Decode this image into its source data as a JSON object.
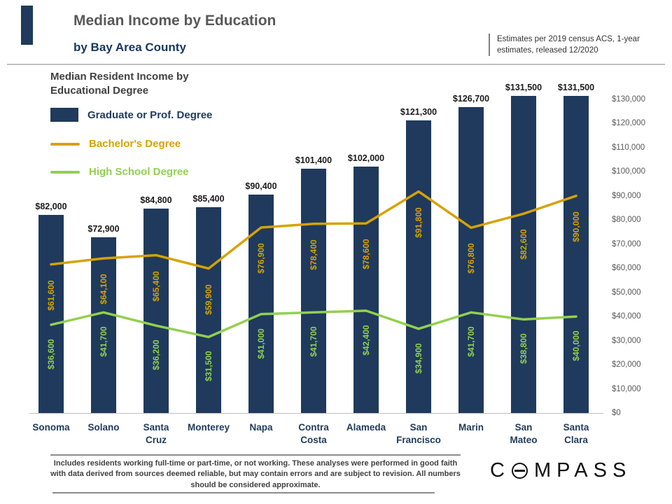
{
  "header": {
    "title": "Median Income by Education",
    "subtitle": "by Bay Area County",
    "note": "Estimates per 2019 census ACS, 1-year estimates, released 12/2020"
  },
  "chart_data": {
    "type": "bar",
    "title": "Median Resident Income by Educational Degree",
    "categories": [
      "Sonoma",
      "Solano",
      "Santa Cruz",
      "Monterey",
      "Napa",
      "Contra Costa",
      "Alameda",
      "San Francisco",
      "Marin",
      "San Mateo",
      "Santa Clara"
    ],
    "series": [
      {
        "name": "Graduate or Prof. Degree",
        "type": "bar",
        "color": "#1F3A5C",
        "values": [
          82000,
          72900,
          84800,
          85400,
          90400,
          101400,
          102000,
          121300,
          126700,
          131500,
          131500
        ],
        "labels": [
          "$82,000",
          "$72,900",
          "$84,800",
          "$85,400",
          "$90,400",
          "$101,400",
          "$102,000",
          "$121,300",
          "$126,700",
          "$131,500",
          "$131,500"
        ]
      },
      {
        "name": "Bachelor's Degree",
        "type": "line",
        "color": "#D7A204",
        "values": [
          61600,
          64100,
          65400,
          59900,
          76900,
          78400,
          78600,
          91800,
          76800,
          82600,
          90000
        ],
        "labels": [
          "$61,600",
          "$64,100",
          "$65,400",
          "$59,900",
          "$76,900",
          "$78,400",
          "$78,600",
          "$91,800",
          "$76,800",
          "$82,600",
          "$90,000"
        ]
      },
      {
        "name": "High School Degree",
        "type": "line",
        "color": "#92D050",
        "values": [
          36600,
          41700,
          36200,
          31500,
          41000,
          41700,
          42400,
          34900,
          41700,
          38800,
          40000
        ],
        "labels": [
          "$36,600",
          "$41,700",
          "$36,200",
          "$31,500",
          "$41,000",
          "$41,700",
          "$42,400",
          "$34,900",
          "$41,700",
          "$38,800",
          "$40,000"
        ]
      }
    ],
    "y_axis": {
      "side": "right",
      "min": 0,
      "max": 130000,
      "step": 10000,
      "ticks": [
        "$0",
        "$10,000",
        "$20,000",
        "$30,000",
        "$40,000",
        "$50,000",
        "$60,000",
        "$70,000",
        "$80,000",
        "$90,000",
        "$100,000",
        "$110,000",
        "$120,000",
        "$130,000"
      ]
    },
    "legend_position": "top-left",
    "grid": false
  },
  "footer": {
    "disclaimer": "Includes residents working full-time or part-time, or not working. These analyses were performed in good faith with data derived from sources deemed reliable, but may contain errors and are subject to revision.  All numbers should be considered approximate.",
    "logo": {
      "label": "COMPASS",
      "prefix": "C",
      "suffix": "MPASS"
    }
  }
}
